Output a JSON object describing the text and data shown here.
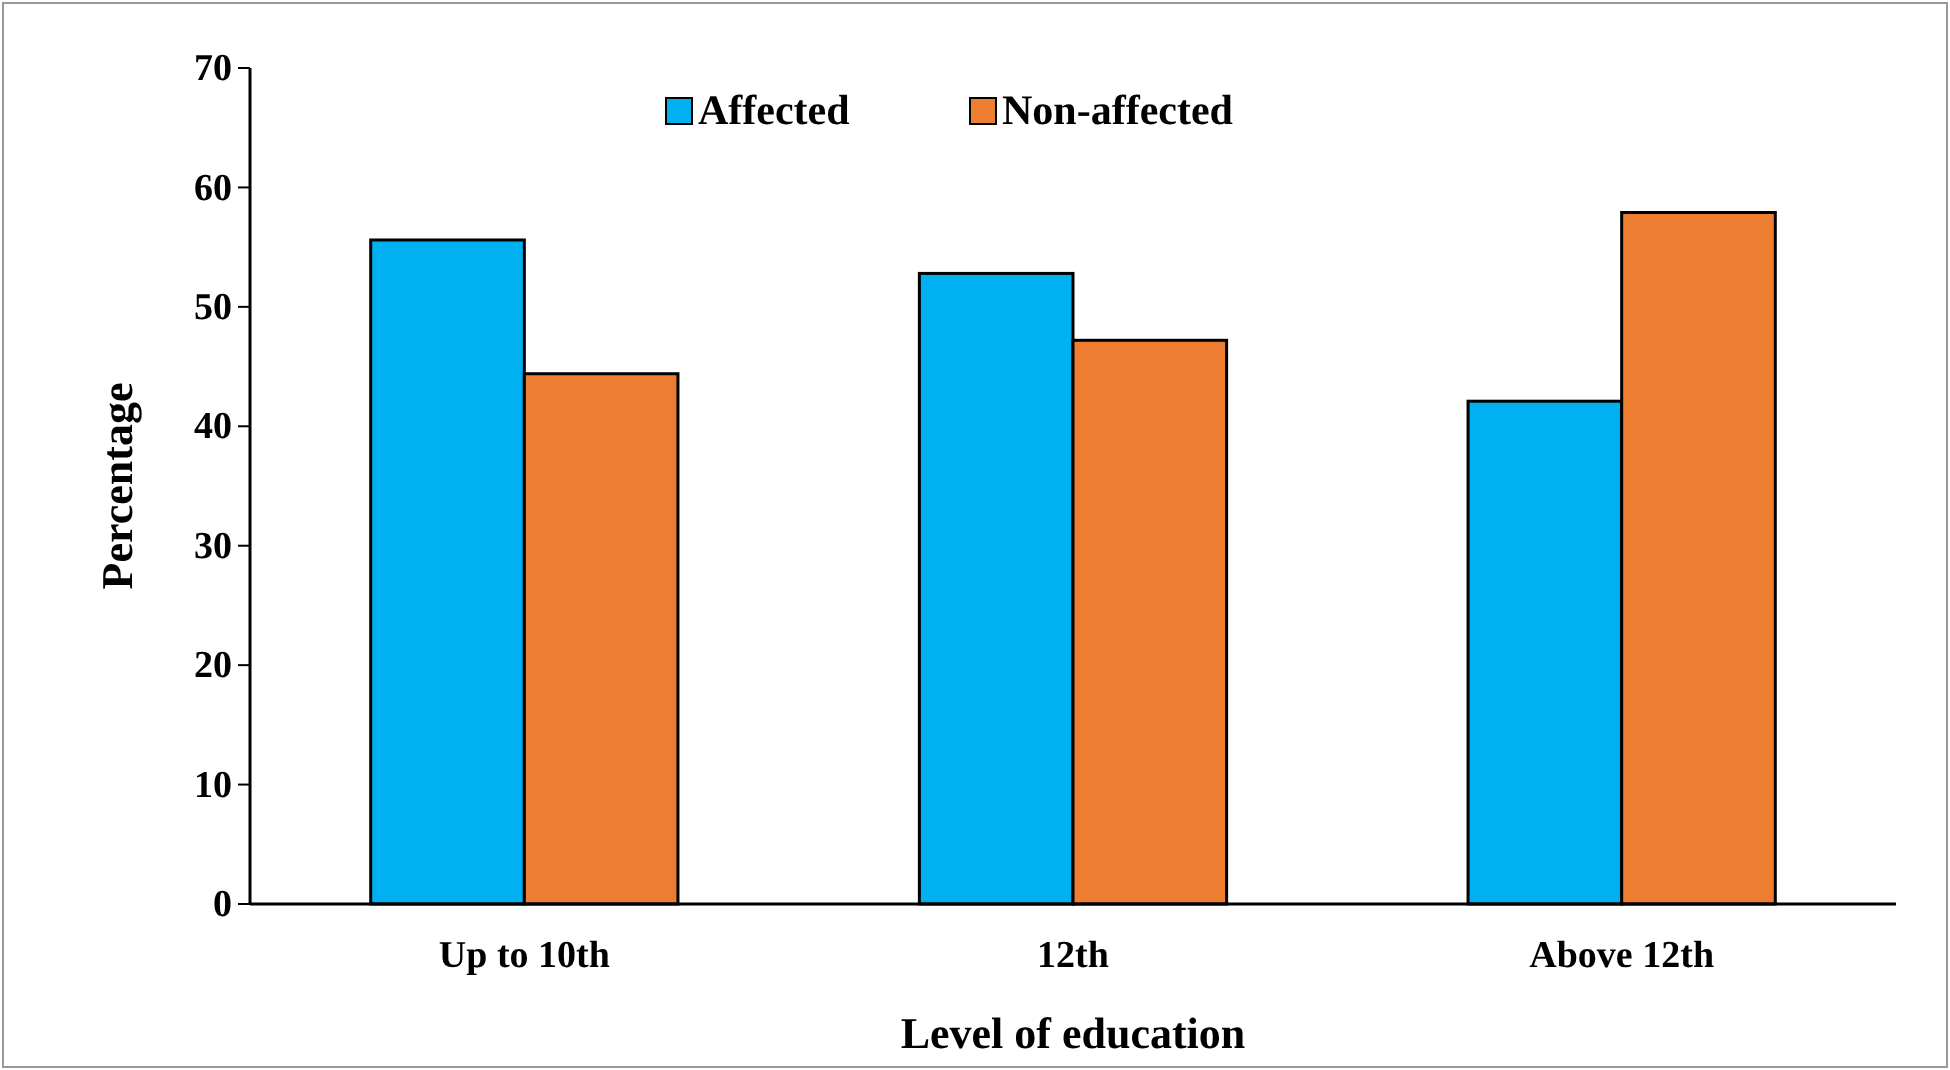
{
  "chart_data": {
    "type": "bar",
    "xlabel": "Level of education",
    "ylabel": "Percentage",
    "categories": [
      "Up to 10th",
      "12th",
      "Above 12th"
    ],
    "series": [
      {
        "name": "Affected",
        "color": "#00b0f0",
        "values": [
          55.6,
          52.8,
          42.1
        ]
      },
      {
        "name": "Non-affected",
        "color": "#ed7d31",
        "values": [
          44.4,
          47.2,
          57.9
        ]
      }
    ],
    "ylim": [
      0,
      70
    ],
    "yticks": [
      0,
      10,
      20,
      30,
      40,
      50,
      60,
      70
    ],
    "grid": false,
    "legend": "top"
  }
}
